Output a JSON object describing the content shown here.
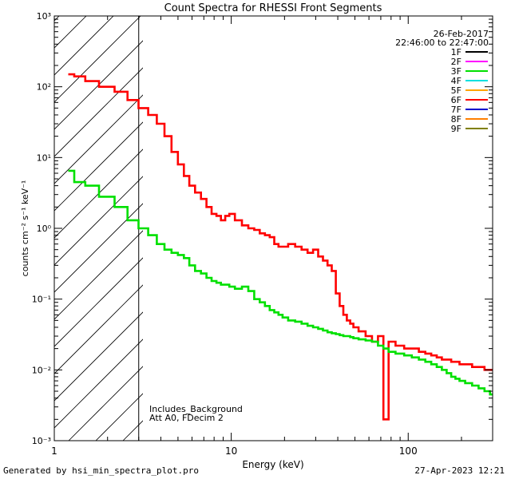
{
  "chart_data": {
    "type": "line",
    "title": "Count Spectra for RHESSI Front Segments",
    "xlabel": "Energy (keV)",
    "ylabel": "counts cm⁻² s⁻¹ keV⁻¹",
    "xscale": "log",
    "yscale": "log",
    "xlim": [
      1,
      300
    ],
    "ylim": [
      0.001,
      1000
    ],
    "x_ticks": [
      1,
      10,
      100
    ],
    "x_tick_labels": [
      "1",
      "10",
      "100"
    ],
    "y_ticks": [
      0.001,
      0.01,
      0.1,
      1,
      10,
      100,
      1000
    ],
    "y_tick_labels": [
      "10⁻³",
      "10⁻²",
      "10⁻¹",
      "10⁰",
      "10¹",
      "10²",
      "10³"
    ],
    "grid": false,
    "hatched_region": [
      1,
      3
    ],
    "legend_position": "top-right",
    "date": "26-Feb-2017",
    "time_range": "22:46:00 to 22:47:00",
    "annotations": [
      "Includes_Background",
      "Att A0, FDecim 2"
    ],
    "legend": [
      {
        "name": "1F",
        "color": "#000000"
      },
      {
        "name": "2F",
        "color": "#ff00ff"
      },
      {
        "name": "3F",
        "color": "#00e000"
      },
      {
        "name": "4F",
        "color": "#00e0e0"
      },
      {
        "name": "5F",
        "color": "#ffa500"
      },
      {
        "name": "6F",
        "color": "#ff0000"
      },
      {
        "name": "7F",
        "color": "#0000cc"
      },
      {
        "name": "8F",
        "color": "#ff7f00"
      },
      {
        "name": "9F",
        "color": "#808000"
      }
    ],
    "series": [
      {
        "name": "6F",
        "color": "#ff0000",
        "x": [
          1.2,
          1.4,
          1.6,
          2.0,
          2.4,
          2.8,
          3.2,
          3.6,
          4.0,
          4.4,
          4.8,
          5.2,
          5.6,
          6.0,
          6.5,
          7.0,
          7.5,
          8.0,
          8.5,
          9.0,
          9.5,
          10,
          11,
          12,
          13,
          14,
          15,
          16,
          17,
          18,
          19,
          20,
          22,
          24,
          26,
          28,
          30,
          32,
          34,
          36,
          38,
          40,
          42,
          44,
          46,
          48,
          50,
          55,
          60,
          65,
          70,
          75,
          80,
          90,
          100,
          110,
          120,
          130,
          140,
          150,
          160,
          170,
          180,
          190,
          200,
          220,
          240,
          260,
          280,
          300
        ],
        "y": [
          150,
          140,
          120,
          100,
          85,
          65,
          50,
          40,
          30,
          20,
          12,
          8,
          5.5,
          4,
          3.2,
          2.6,
          2.0,
          1.6,
          1.5,
          1.3,
          1.5,
          1.6,
          1.3,
          1.1,
          1.0,
          0.95,
          0.85,
          0.8,
          0.75,
          0.6,
          0.55,
          0.55,
          0.6,
          0.55,
          0.5,
          0.45,
          0.5,
          0.4,
          0.35,
          0.3,
          0.25,
          0.12,
          0.08,
          0.06,
          0.05,
          0.045,
          0.04,
          0.035,
          0.03,
          0.025,
          0.03,
          0.002,
          0.025,
          0.022,
          0.02,
          0.02,
          0.018,
          0.017,
          0.016,
          0.015,
          0.014,
          0.014,
          0.013,
          0.013,
          0.012,
          0.012,
          0.011,
          0.011,
          0.01,
          0.01
        ]
      },
      {
        "name": "3F",
        "color": "#00e000",
        "x": [
          1.2,
          1.4,
          1.6,
          2.0,
          2.4,
          2.8,
          3.2,
          3.6,
          4.0,
          4.4,
          4.8,
          5.2,
          5.6,
          6.0,
          6.5,
          7.0,
          7.5,
          8.0,
          8.5,
          9.0,
          9.5,
          10,
          11,
          12,
          13,
          14,
          15,
          16,
          17,
          18,
          19,
          20,
          22,
          24,
          26,
          28,
          30,
          32,
          34,
          36,
          38,
          40,
          42,
          44,
          46,
          48,
          50,
          55,
          60,
          65,
          70,
          75,
          80,
          90,
          100,
          110,
          120,
          130,
          140,
          150,
          160,
          170,
          180,
          190,
          200,
          220,
          240,
          260,
          280,
          300
        ],
        "y": [
          6.5,
          4.5,
          4.0,
          2.8,
          2.0,
          1.3,
          1.0,
          0.8,
          0.6,
          0.5,
          0.45,
          0.42,
          0.38,
          0.3,
          0.25,
          0.23,
          0.2,
          0.18,
          0.17,
          0.16,
          0.16,
          0.15,
          0.14,
          0.15,
          0.13,
          0.1,
          0.09,
          0.08,
          0.07,
          0.065,
          0.06,
          0.055,
          0.05,
          0.048,
          0.045,
          0.042,
          0.04,
          0.038,
          0.036,
          0.034,
          0.033,
          0.032,
          0.031,
          0.03,
          0.03,
          0.029,
          0.028,
          0.027,
          0.026,
          0.025,
          0.022,
          0.02,
          0.018,
          0.017,
          0.016,
          0.015,
          0.014,
          0.013,
          0.012,
          0.011,
          0.01,
          0.009,
          0.008,
          0.0075,
          0.007,
          0.0065,
          0.006,
          0.0055,
          0.005,
          0.0045
        ]
      }
    ]
  },
  "footer": {
    "generated_by": "Generated by hsi_min_spectra_plot.pro",
    "date_time": "27-Apr-2023 12:21"
  }
}
